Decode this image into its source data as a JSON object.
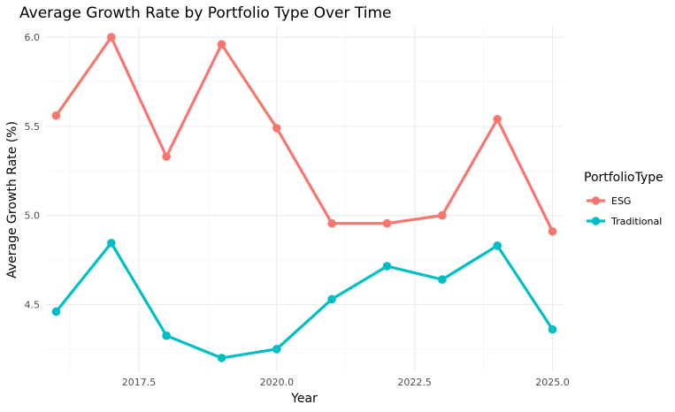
{
  "chart_data": {
    "type": "line",
    "title": "Average Growth Rate by Portfolio Type Over Time",
    "xlabel": "Year",
    "ylabel": "Average Growth Rate (%)",
    "x": [
      2016,
      2017,
      2018,
      2019,
      2020,
      2021,
      2022,
      2023,
      2024,
      2025
    ],
    "xlim": [
      2015.8,
      2025.2
    ],
    "ylim": [
      4.12,
      6.06
    ],
    "x_ticks": [
      2017.5,
      2020.0,
      2022.5,
      2025.0
    ],
    "x_tick_labels": [
      "2017.5",
      "2020.0",
      "2022.5",
      "2025.0"
    ],
    "y_ticks": [
      4.5,
      5.0,
      5.5,
      6.0
    ],
    "y_tick_labels": [
      "4.5",
      "5.0",
      "5.5",
      "6.0"
    ],
    "grid": true,
    "legend": {
      "title": "PortfolioType",
      "position": "right"
    },
    "series": [
      {
        "name": "ESG",
        "color": "#F8766D",
        "values": [
          5.56,
          6.0,
          5.33,
          5.96,
          5.49,
          4.955,
          4.955,
          5.0,
          5.54,
          4.91
        ]
      },
      {
        "name": "Traditional",
        "color": "#00BFC4",
        "values": [
          4.46,
          4.845,
          4.325,
          4.2,
          4.25,
          4.53,
          4.715,
          4.64,
          4.83,
          4.36
        ]
      }
    ]
  }
}
